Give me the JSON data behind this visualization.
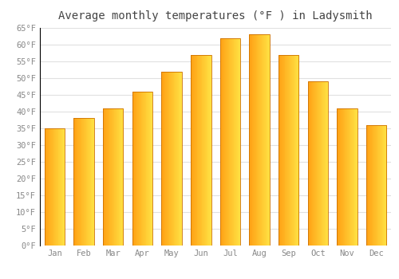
{
  "title": "Average monthly temperatures (°F ) in Ladysmith",
  "months": [
    "Jan",
    "Feb",
    "Mar",
    "Apr",
    "May",
    "Jun",
    "Jul",
    "Aug",
    "Sep",
    "Oct",
    "Nov",
    "Dec"
  ],
  "values": [
    35,
    38,
    41,
    46,
    52,
    57,
    62,
    63,
    57,
    49,
    41,
    36
  ],
  "bar_color_left": "#FFA020",
  "bar_color_right": "#FFD060",
  "bar_edge_color": "#CC7000",
  "ylim": [
    0,
    65
  ],
  "yticks": [
    0,
    5,
    10,
    15,
    20,
    25,
    30,
    35,
    40,
    45,
    50,
    55,
    60,
    65
  ],
  "ytick_labels": [
    "0°F",
    "5°F",
    "10°F",
    "15°F",
    "20°F",
    "25°F",
    "30°F",
    "35°F",
    "40°F",
    "45°F",
    "50°F",
    "55°F",
    "60°F",
    "65°F"
  ],
  "background_color": "#FFFFFF",
  "grid_color": "#E0E0E0",
  "title_fontsize": 10,
  "tick_fontsize": 7.5,
  "font_family": "monospace"
}
